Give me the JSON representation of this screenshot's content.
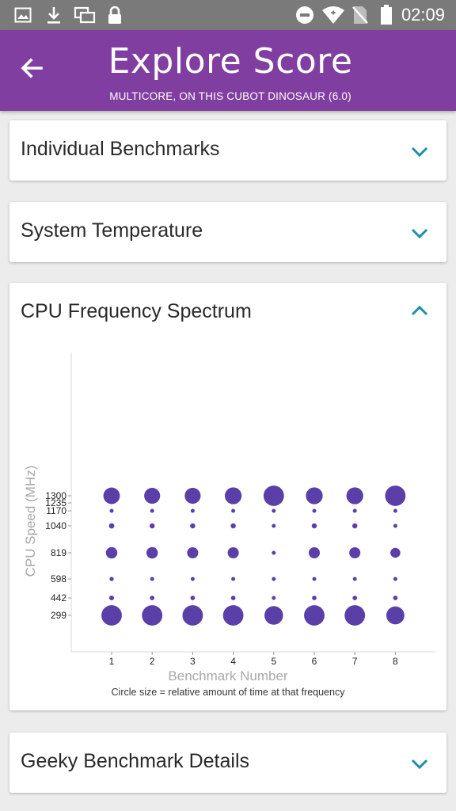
{
  "status_bar": {
    "time": "02:09",
    "icons_left": [
      "image-icon",
      "download-icon",
      "copy-icon",
      "lock-icon"
    ],
    "icons_right": [
      "do-not-disturb-icon",
      "wifi-icon",
      "no-sim-icon",
      "battery-icon"
    ]
  },
  "app_bar": {
    "title": "Explore Score",
    "subtitle": "MULTICORE, ON THIS CUBOT DINOSAUR (6.0)",
    "color": "#803fa0"
  },
  "sections": [
    {
      "title": "Individual Benchmarks",
      "expanded": false
    },
    {
      "title": "System Temperature",
      "expanded": false
    },
    {
      "title": "CPU Frequency Spectrum",
      "expanded": true
    },
    {
      "title": "Geeky Benchmark Details",
      "expanded": false
    }
  ],
  "accent_color": "#1a8fb0",
  "chart_caption": "Circle size = relative amount of time at that frequency",
  "chart_data": {
    "type": "scatter",
    "xlabel": "Benchmark Number",
    "ylabel": "CPU Speed (MHz)",
    "x_ticks": [
      1,
      2,
      3,
      4,
      5,
      6,
      7,
      8
    ],
    "y_ticks": [
      299,
      442,
      598,
      819,
      1040,
      1170,
      1235,
      1300
    ],
    "marker_color": "#5b3fa8",
    "grid": false,
    "points": [
      {
        "x": 1,
        "y": 1300,
        "size": 0.55
      },
      {
        "x": 1,
        "y": 1170,
        "size": 0.12
      },
      {
        "x": 1,
        "y": 1040,
        "size": 0.18
      },
      {
        "x": 1,
        "y": 819,
        "size": 0.38
      },
      {
        "x": 1,
        "y": 598,
        "size": 0.14
      },
      {
        "x": 1,
        "y": 442,
        "size": 0.16
      },
      {
        "x": 1,
        "y": 299,
        "size": 0.68
      },
      {
        "x": 2,
        "y": 1300,
        "size": 0.53
      },
      {
        "x": 2,
        "y": 1170,
        "size": 0.11
      },
      {
        "x": 2,
        "y": 1040,
        "size": 0.17
      },
      {
        "x": 2,
        "y": 819,
        "size": 0.38
      },
      {
        "x": 2,
        "y": 598,
        "size": 0.13
      },
      {
        "x": 2,
        "y": 442,
        "size": 0.15
      },
      {
        "x": 2,
        "y": 299,
        "size": 0.68
      },
      {
        "x": 3,
        "y": 1300,
        "size": 0.53
      },
      {
        "x": 3,
        "y": 1170,
        "size": 0.11
      },
      {
        "x": 3,
        "y": 1040,
        "size": 0.17
      },
      {
        "x": 3,
        "y": 819,
        "size": 0.37
      },
      {
        "x": 3,
        "y": 598,
        "size": 0.13
      },
      {
        "x": 3,
        "y": 442,
        "size": 0.15
      },
      {
        "x": 3,
        "y": 299,
        "size": 0.68
      },
      {
        "x": 4,
        "y": 1300,
        "size": 0.56
      },
      {
        "x": 4,
        "y": 1170,
        "size": 0.11
      },
      {
        "x": 4,
        "y": 1040,
        "size": 0.17
      },
      {
        "x": 4,
        "y": 819,
        "size": 0.37
      },
      {
        "x": 4,
        "y": 598,
        "size": 0.13
      },
      {
        "x": 4,
        "y": 442,
        "size": 0.15
      },
      {
        "x": 4,
        "y": 299,
        "size": 0.68
      },
      {
        "x": 5,
        "y": 1300,
        "size": 0.68
      },
      {
        "x": 5,
        "y": 1170,
        "size": 0.1
      },
      {
        "x": 5,
        "y": 1040,
        "size": 0.13
      },
      {
        "x": 5,
        "y": 819,
        "size": 0.11
      },
      {
        "x": 5,
        "y": 598,
        "size": 0.08
      },
      {
        "x": 5,
        "y": 442,
        "size": 0.1
      },
      {
        "x": 5,
        "y": 299,
        "size": 0.62
      },
      {
        "x": 6,
        "y": 1300,
        "size": 0.56
      },
      {
        "x": 6,
        "y": 1170,
        "size": 0.11
      },
      {
        "x": 6,
        "y": 1040,
        "size": 0.17
      },
      {
        "x": 6,
        "y": 819,
        "size": 0.37
      },
      {
        "x": 6,
        "y": 598,
        "size": 0.13
      },
      {
        "x": 6,
        "y": 442,
        "size": 0.15
      },
      {
        "x": 6,
        "y": 299,
        "size": 0.68
      },
      {
        "x": 7,
        "y": 1300,
        "size": 0.56
      },
      {
        "x": 7,
        "y": 1170,
        "size": 0.11
      },
      {
        "x": 7,
        "y": 1040,
        "size": 0.17
      },
      {
        "x": 7,
        "y": 819,
        "size": 0.37
      },
      {
        "x": 7,
        "y": 598,
        "size": 0.13
      },
      {
        "x": 7,
        "y": 442,
        "size": 0.15
      },
      {
        "x": 7,
        "y": 299,
        "size": 0.68
      },
      {
        "x": 8,
        "y": 1300,
        "size": 0.68
      },
      {
        "x": 8,
        "y": 1170,
        "size": 0.09
      },
      {
        "x": 8,
        "y": 1040,
        "size": 0.12
      },
      {
        "x": 8,
        "y": 819,
        "size": 0.33
      },
      {
        "x": 8,
        "y": 598,
        "size": 0.08
      },
      {
        "x": 8,
        "y": 442,
        "size": 0.15
      },
      {
        "x": 8,
        "y": 299,
        "size": 0.6
      }
    ]
  }
}
